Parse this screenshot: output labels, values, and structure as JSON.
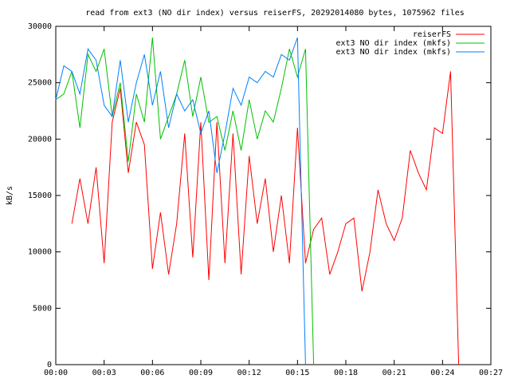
{
  "chart_data": {
    "type": "line",
    "title": "read from ext3 (NO dir index) versus reiserFS, 20292014080 bytes, 1075962 files",
    "y_label": "kB/s",
    "x": [
      0,
      0.5,
      1,
      1.5,
      2,
      2.5,
      3,
      3.5,
      4,
      4.5,
      5,
      5.5,
      6,
      6.5,
      7,
      7.5,
      8,
      8.5,
      9,
      9.5,
      10,
      10.5,
      11,
      11.5,
      12,
      12.5,
      13,
      13.5,
      14,
      14.5,
      15,
      15.5,
      16,
      16.5,
      17,
      17.5,
      18,
      18.5,
      19,
      19.5,
      20,
      20.5,
      21,
      21.5,
      22,
      22.5,
      23,
      23.5,
      24,
      24.5,
      25
    ],
    "series": [
      {
        "name": "reiserFS",
        "color": "#ff0000",
        "values": [
          null,
          null,
          12500,
          16500,
          12500,
          17500,
          9000,
          21500,
          24500,
          17000,
          21500,
          19500,
          8500,
          13500,
          8000,
          12500,
          20500,
          9500,
          21500,
          7500,
          21500,
          9000,
          20500,
          8000,
          18500,
          12500,
          16500,
          10000,
          15000,
          9000,
          21000,
          9000,
          12000,
          13000,
          8000,
          10000,
          12500,
          13000,
          6500,
          10000,
          15500,
          12500,
          11000,
          13000,
          19000,
          17000,
          15500,
          21000,
          20500,
          26000,
          0
        ]
      },
      {
        "name": "ext3 NO dir index (mkfs)",
        "color": "#00c000",
        "values": [
          23500,
          24000,
          26000,
          21000,
          27500,
          26000,
          28000,
          22000,
          25000,
          18000,
          24000,
          21500,
          29000,
          20000,
          22000,
          24000,
          27000,
          22000,
          25500,
          21500,
          22000,
          19000,
          22500,
          19000,
          23500,
          20000,
          22500,
          21500,
          24500,
          28000,
          25500,
          28000,
          0,
          null,
          null,
          null,
          null,
          null,
          null,
          null,
          null,
          null,
          null,
          null,
          null,
          null,
          null,
          null,
          null,
          null,
          null
        ]
      },
      {
        "name": "ext3 NO dir index (mkfs)",
        "color": "#0080ff",
        "values": [
          23500,
          26500,
          26000,
          24000,
          28000,
          27000,
          23000,
          22000,
          27000,
          21500,
          25000,
          27500,
          23000,
          26000,
          21000,
          24000,
          22500,
          23500,
          20500,
          22500,
          17000,
          20500,
          24500,
          23000,
          25500,
          25000,
          26000,
          25500,
          27500,
          27000,
          29000,
          0,
          null,
          null,
          null,
          null,
          null,
          null,
          null,
          null,
          null,
          null,
          null,
          null,
          null,
          null,
          null,
          null,
          null,
          null,
          null
        ]
      }
    ],
    "xlim": [
      0,
      27
    ],
    "xticks": [
      {
        "value": 0,
        "label": "00:00"
      },
      {
        "value": 3,
        "label": "00:03"
      },
      {
        "value": 6,
        "label": "00:06"
      },
      {
        "value": 9,
        "label": "00:09"
      },
      {
        "value": 12,
        "label": "00:12"
      },
      {
        "value": 15,
        "label": "00:15"
      },
      {
        "value": 18,
        "label": "00:18"
      },
      {
        "value": 21,
        "label": "00:21"
      },
      {
        "value": 24,
        "label": "00:24"
      },
      {
        "value": 27,
        "label": "00:27"
      }
    ],
    "ylim": [
      0,
      30000
    ],
    "yticks": [
      0,
      5000,
      10000,
      15000,
      20000,
      25000,
      30000
    ],
    "legend": "top-right",
    "grid": false
  }
}
